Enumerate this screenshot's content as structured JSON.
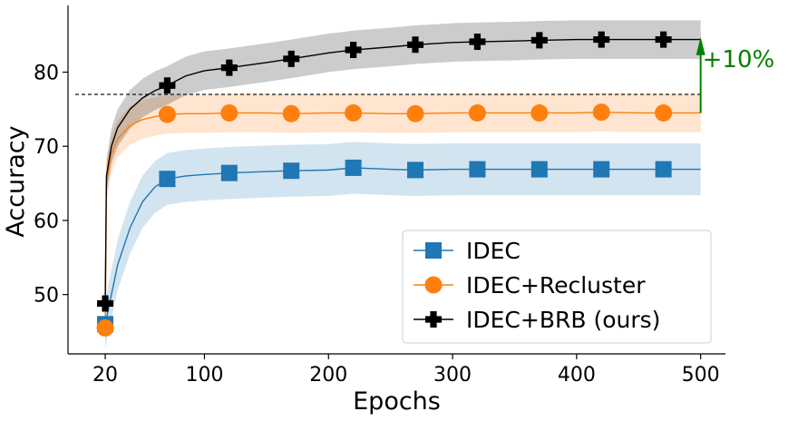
{
  "chart_data": {
    "type": "line",
    "xlabel": "Epochs",
    "ylabel": "Accuracy",
    "xlim": [
      -10,
      520
    ],
    "ylim": [
      42,
      89
    ],
    "x_ticks": [
      20,
      100,
      200,
      300,
      400,
      500
    ],
    "y_ticks": [
      50,
      60,
      70,
      80
    ],
    "grid": false,
    "legend_position": "lower-right",
    "series": [
      {
        "name": "IDEC",
        "color": "#1f77b4",
        "marker": "square",
        "x": [
          20,
          25,
          30,
          40,
          50,
          60,
          70,
          85,
          100,
          120,
          150,
          170,
          200,
          220,
          250,
          270,
          300,
          320,
          350,
          370,
          400,
          420,
          450,
          470,
          500
        ],
        "y": [
          46,
          50,
          54,
          59,
          62.5,
          64.5,
          65.6,
          66,
          66.2,
          66.4,
          66.6,
          66.7,
          66.8,
          67.1,
          66.9,
          66.8,
          66.9,
          66.9,
          66.9,
          66.9,
          66.9,
          66.9,
          66.9,
          66.9,
          66.9
        ],
        "band": [
          3.2,
          3.3,
          3.4,
          3.5,
          3.5,
          3.5,
          3.5,
          3.5,
          3.5,
          3.5,
          3.5,
          3.5,
          3.5,
          3.5,
          3.5,
          3.5,
          3.5,
          3.5,
          3.5,
          3.5,
          3.5,
          3.5,
          3.5,
          3.5,
          3.5
        ],
        "marker_x": [
          20,
          70,
          120,
          170,
          220,
          270,
          320,
          370,
          420,
          470
        ]
      },
      {
        "name": "IDEC+Recluster",
        "color": "#ff7f0e",
        "marker": "circle",
        "x": [
          20,
          21,
          25,
          30,
          40,
          50,
          60,
          70,
          85,
          100,
          120,
          150,
          170,
          200,
          220,
          250,
          270,
          300,
          320,
          350,
          370,
          400,
          420,
          450,
          470,
          500
        ],
        "y": [
          45.5,
          65,
          69,
          71,
          72.8,
          73.6,
          74,
          74.3,
          74.4,
          74.4,
          74.5,
          74.5,
          74.4,
          74.5,
          74.5,
          74.4,
          74.4,
          74.5,
          74.5,
          74.5,
          74.5,
          74.5,
          74.6,
          74.5,
          74.5,
          74.5
        ],
        "band": [
          1.0,
          2.4,
          2.5,
          2.5,
          2.6,
          2.6,
          2.6,
          2.6,
          2.6,
          2.6,
          2.6,
          2.6,
          2.6,
          2.6,
          2.6,
          2.6,
          2.6,
          2.6,
          2.6,
          2.6,
          2.6,
          2.6,
          2.6,
          2.6,
          2.6,
          2.6
        ],
        "marker_x": [
          20,
          70,
          120,
          170,
          220,
          270,
          320,
          370,
          420,
          470
        ]
      },
      {
        "name": "IDEC+BRB (ours)",
        "color": "#000000",
        "marker": "plus",
        "x": [
          20,
          21,
          25,
          30,
          40,
          50,
          60,
          70,
          85,
          100,
          120,
          150,
          170,
          200,
          220,
          250,
          270,
          300,
          320,
          350,
          370,
          400,
          420,
          450,
          470,
          500
        ],
        "y": [
          48.8,
          66,
          70,
          72.5,
          75,
          76.5,
          77.5,
          78.2,
          79.5,
          80.2,
          80.6,
          81.3,
          81.8,
          82.6,
          83,
          83.4,
          83.7,
          84,
          84.1,
          84.2,
          84.3,
          84.4,
          84.4,
          84.4,
          84.4,
          84.4
        ],
        "band": [
          1.0,
          2.3,
          2.4,
          2.5,
          2.6,
          2.6,
          2.6,
          2.6,
          2.6,
          2.6,
          2.6,
          2.6,
          2.6,
          2.6,
          2.6,
          2.6,
          2.6,
          2.6,
          2.6,
          2.6,
          2.6,
          2.6,
          2.6,
          2.6,
          2.6,
          2.6
        ],
        "marker_x": [
          20,
          70,
          120,
          170,
          220,
          270,
          320,
          370,
          420,
          470
        ]
      }
    ],
    "reference_line": {
      "y": 77,
      "style": "dashed",
      "color": "#000000"
    },
    "annotation": {
      "text": "+10%",
      "color": "#008000",
      "x": 500,
      "y_from": 74.5,
      "y_to": 84.5
    }
  }
}
